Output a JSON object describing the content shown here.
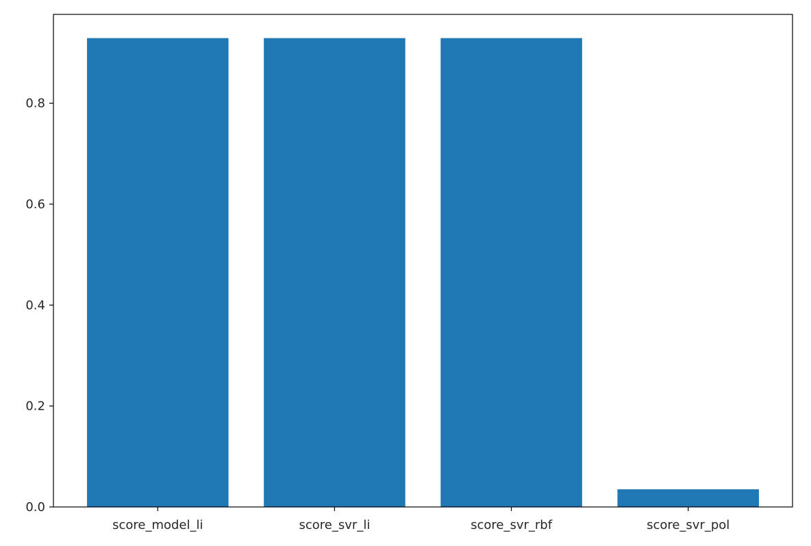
{
  "chart_data": {
    "type": "bar",
    "title": "",
    "xlabel": "",
    "ylabel": "",
    "categories": [
      "score_model_li",
      "score_svr_li",
      "score_svr_rbf",
      "score_svr_pol"
    ],
    "values": [
      0.929,
      0.929,
      0.929,
      0.035
    ],
    "ylim": [
      0,
      0.976
    ],
    "yticks": [
      0.0,
      0.2,
      0.4,
      0.6,
      0.8
    ],
    "ytick_labels": [
      "0.0",
      "0.2",
      "0.4",
      "0.6",
      "0.8"
    ],
    "bar_color": "#1f77b4",
    "grid": false,
    "legend": "none"
  }
}
